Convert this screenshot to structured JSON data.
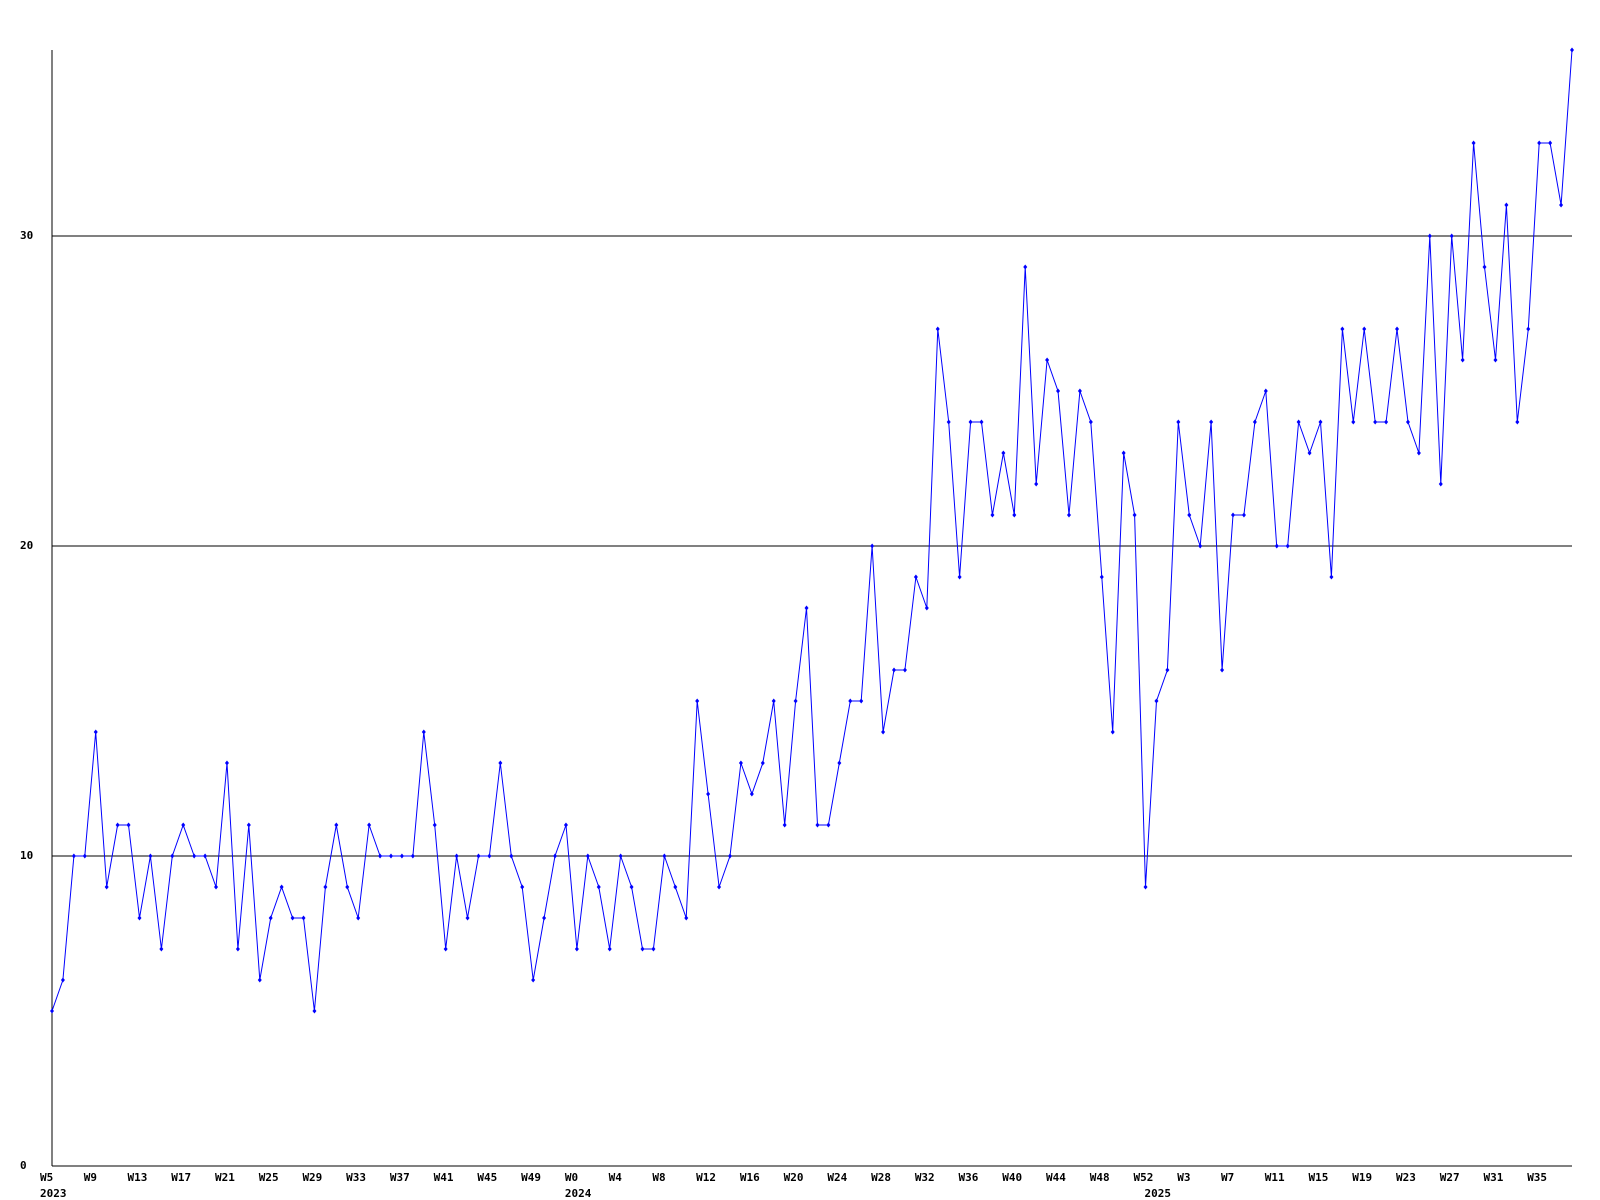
{
  "chart_data": {
    "type": "line",
    "color": "#0000ff",
    "grid": true,
    "ylim": [
      0,
      36
    ],
    "yticks": [
      0,
      10,
      20,
      30
    ],
    "categories": [
      "W5",
      null,
      null,
      null,
      "W9",
      null,
      null,
      null,
      "W13",
      null,
      null,
      null,
      "W17",
      null,
      null,
      null,
      "W21",
      null,
      null,
      null,
      "W25",
      null,
      null,
      null,
      "W29",
      null,
      null,
      null,
      "W33",
      null,
      null,
      null,
      "W37",
      null,
      null,
      null,
      "W41",
      null,
      null,
      null,
      "W45",
      null,
      null,
      null,
      "W49",
      null,
      null,
      null,
      "W0",
      null,
      null,
      null,
      "W4",
      null,
      null,
      null,
      "W8",
      null,
      null,
      null,
      "W12",
      null,
      null,
      null,
      "W16",
      null,
      null,
      null,
      "W20",
      null,
      null,
      null,
      "W24",
      null,
      null,
      null,
      "W28",
      null,
      null,
      null,
      "W32",
      null,
      null,
      null,
      "W36",
      null,
      null,
      null,
      "W40",
      null,
      null,
      null,
      "W44",
      null,
      null,
      null,
      "W48",
      null,
      null,
      null,
      "W52",
      null,
      null,
      null,
      "W3",
      null,
      null,
      null,
      "W7",
      null,
      null,
      null,
      "W11",
      null,
      null,
      null,
      "W15",
      null,
      null,
      null,
      "W19",
      null,
      null,
      null,
      "W23",
      null,
      null,
      null,
      "W27",
      null,
      null,
      null,
      "W31",
      null,
      null,
      null,
      "W35",
      null,
      null,
      null
    ],
    "years": [
      "2023",
      null,
      null,
      null,
      null,
      null,
      null,
      null,
      null,
      null,
      null,
      null,
      null,
      null,
      null,
      null,
      null,
      null,
      null,
      null,
      null,
      null,
      null,
      null,
      null,
      null,
      null,
      null,
      null,
      null,
      null,
      null,
      null,
      null,
      null,
      null,
      null,
      null,
      null,
      null,
      null,
      null,
      null,
      null,
      null,
      null,
      null,
      null,
      "2024",
      null,
      null,
      null,
      null,
      null,
      null,
      null,
      null,
      null,
      null,
      null,
      null,
      null,
      null,
      null,
      null,
      null,
      null,
      null,
      null,
      null,
      null,
      null,
      null,
      null,
      null,
      null,
      null,
      null,
      null,
      null,
      null,
      null,
      null,
      null,
      null,
      null,
      null,
      null,
      null,
      null,
      null,
      null,
      null,
      null,
      null,
      null,
      null,
      null,
      null,
      null,
      null,
      "2025",
      null,
      null,
      null,
      null,
      null,
      null,
      null,
      null,
      null,
      null,
      null,
      null,
      null,
      null,
      null,
      null,
      null,
      null,
      null,
      null,
      null,
      null,
      null,
      null,
      null,
      null,
      null,
      null,
      null,
      null,
      null,
      null,
      null,
      null,
      null,
      null,
      null,
      null,
      null
    ],
    "values": [
      5,
      6,
      10,
      10,
      14,
      9,
      11,
      11,
      8,
      10,
      7,
      10,
      11,
      10,
      10,
      9,
      13,
      7,
      11,
      6,
      8,
      9,
      8,
      8,
      5,
      9,
      11,
      9,
      8,
      11,
      10,
      10,
      10,
      10,
      14,
      11,
      7,
      10,
      8,
      10,
      10,
      13,
      10,
      9,
      6,
      8,
      10,
      11,
      7,
      10,
      9,
      7,
      10,
      9,
      7,
      7,
      10,
      9,
      8,
      15,
      12,
      9,
      10,
      13,
      12,
      13,
      15,
      11,
      15,
      18,
      11,
      11,
      13,
      15,
      15,
      20,
      14,
      16,
      16,
      19,
      18,
      27,
      24,
      19,
      24,
      24,
      21,
      23,
      21,
      29,
      22,
      26,
      25,
      21,
      25,
      24,
      19,
      14,
      23,
      21,
      9,
      15,
      16,
      24,
      21,
      20,
      24,
      16,
      21,
      21,
      24,
      25,
      20,
      20,
      24,
      23,
      24,
      19,
      27,
      24,
      27,
      24,
      24,
      27,
      24,
      23,
      30,
      22,
      30,
      26,
      33,
      29,
      26,
      31,
      24,
      27,
      33,
      33,
      31,
      36
    ]
  }
}
